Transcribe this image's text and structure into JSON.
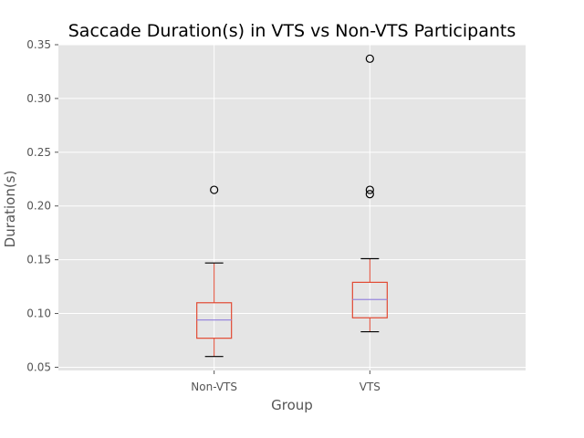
{
  "colors": {
    "plot_background": "#E5E5E5",
    "grid": "#FFFFFF",
    "box": "#E24A33",
    "median": "#8EBA42",
    "median_line": "#9988DD",
    "whisker_cap": "#000000",
    "outlier_edge": "#000000",
    "text": "#555555"
  },
  "chart_data": {
    "type": "box",
    "title": "Saccade Duration(s) in VTS vs Non-VTS Participants",
    "xlabel": "Group",
    "ylabel": "Duration(s)",
    "ylim": [
      0.047,
      0.35
    ],
    "yticks": [
      0.05,
      0.1,
      0.15,
      0.2,
      0.25,
      0.3,
      0.35
    ],
    "ytick_labels": [
      "0.05",
      "0.10",
      "0.15",
      "0.20",
      "0.25",
      "0.30",
      "0.35"
    ],
    "grid": true,
    "categories": [
      "Non-VTS",
      "VTS"
    ],
    "boxes": [
      {
        "name": "Non-VTS",
        "whisker_low": 0.06,
        "q1": 0.077,
        "median": 0.094,
        "q3": 0.11,
        "whisker_high": 0.147,
        "outliers": [
          0.215
        ]
      },
      {
        "name": "VTS",
        "whisker_low": 0.083,
        "q1": 0.096,
        "median": 0.113,
        "q3": 0.129,
        "whisker_high": 0.151,
        "outliers": [
          0.211,
          0.215,
          0.337
        ]
      }
    ]
  }
}
